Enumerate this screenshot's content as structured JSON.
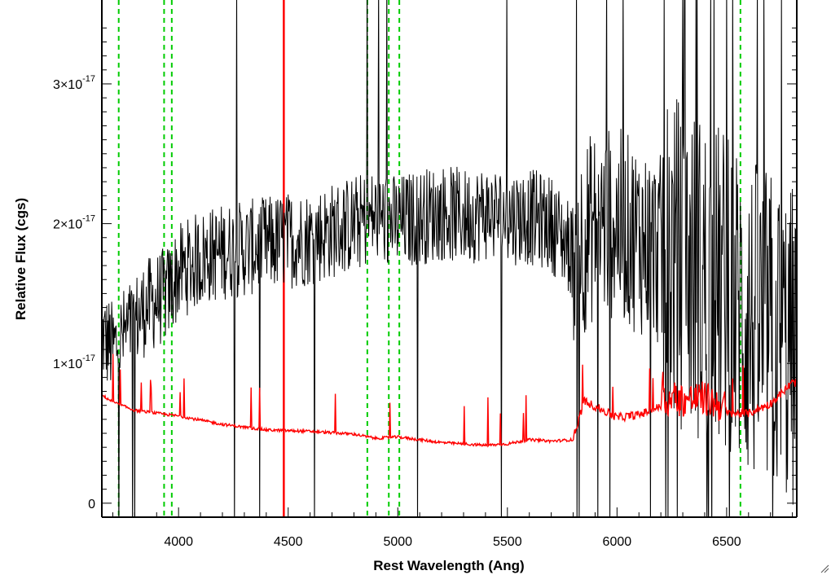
{
  "chart_data": {
    "type": "line",
    "xlabel": "Rest Wavelength (Ang)",
    "ylabel": "Relative Flux (cgs)",
    "xlim": [
      3650,
      6820
    ],
    "ylim": [
      -0.1,
      3.6
    ],
    "y_unit_exponent": -17,
    "x_ticks": [
      4000,
      4500,
      5000,
      5500,
      6000,
      6500
    ],
    "x_tick_labels": [
      "4000",
      "4500",
      "5000",
      "5500",
      "6000",
      "6500"
    ],
    "y_ticks": [
      0,
      1,
      2,
      3
    ],
    "y_tick_labels": [
      {
        "mantissa": "0",
        "exponent": ""
      },
      {
        "mantissa": "1×10",
        "exponent": "-17"
      },
      {
        "mantissa": "2×10",
        "exponent": "-17"
      },
      {
        "mantissa": "3×10",
        "exponent": "-17"
      }
    ],
    "grid": false,
    "series": [
      {
        "color": "#000000",
        "style": "solid",
        "description_points": [
          [
            3650,
            1.2
          ],
          [
            3700,
            1.1
          ],
          [
            3750,
            1.2
          ],
          [
            3800,
            1.3
          ],
          [
            3850,
            1.4
          ],
          [
            3900,
            1.45
          ],
          [
            3950,
            1.5
          ],
          [
            4000,
            1.65
          ],
          [
            4100,
            1.75
          ],
          [
            4200,
            1.8
          ],
          [
            4300,
            1.82
          ],
          [
            4400,
            1.85
          ],
          [
            4500,
            1.88
          ],
          [
            4600,
            1.9
          ],
          [
            4700,
            1.95
          ],
          [
            4800,
            2.0
          ],
          [
            4900,
            2.05
          ],
          [
            5000,
            2.0
          ],
          [
            5100,
            2.05
          ],
          [
            5200,
            2.08
          ],
          [
            5300,
            2.05
          ],
          [
            5400,
            2.08
          ],
          [
            5500,
            2.05
          ],
          [
            5600,
            2.05
          ],
          [
            5700,
            2.0
          ],
          [
            5800,
            1.8
          ],
          [
            5900,
            2.0
          ],
          [
            6000,
            2.0
          ],
          [
            6100,
            1.9
          ],
          [
            6200,
            1.8
          ],
          [
            6300,
            1.7
          ],
          [
            6400,
            1.6
          ],
          [
            6500,
            1.5
          ],
          [
            6600,
            1.3
          ],
          [
            6700,
            1.2
          ],
          [
            6800,
            1.1
          ]
        ]
      },
      {
        "color": "#ff0000",
        "style": "solid",
        "description_points": [
          [
            3650,
            0.77
          ],
          [
            3700,
            0.72
          ],
          [
            3800,
            0.66
          ],
          [
            3900,
            0.64
          ],
          [
            4000,
            0.62
          ],
          [
            4200,
            0.56
          ],
          [
            4400,
            0.52
          ],
          [
            4600,
            0.51
          ],
          [
            4800,
            0.49
          ],
          [
            4900,
            0.46
          ],
          [
            5000,
            0.47
          ],
          [
            5200,
            0.43
          ],
          [
            5400,
            0.41
          ],
          [
            5500,
            0.42
          ],
          [
            5600,
            0.45
          ],
          [
            5700,
            0.44
          ],
          [
            5800,
            0.45
          ],
          [
            5850,
            0.72
          ],
          [
            6000,
            0.6
          ],
          [
            6100,
            0.62
          ],
          [
            6200,
            0.68
          ],
          [
            6400,
            0.7
          ],
          [
            6500,
            0.63
          ],
          [
            6600,
            0.63
          ],
          [
            6700,
            0.7
          ],
          [
            6800,
            0.85
          ]
        ]
      }
    ],
    "vertical_lines": [
      {
        "x": 3727,
        "color": "#00cc00",
        "style": "dashed"
      },
      {
        "x": 3934,
        "color": "#00cc00",
        "style": "dashed"
      },
      {
        "x": 3969,
        "color": "#00cc00",
        "style": "dashed"
      },
      {
        "x": 4861,
        "color": "#00cc00",
        "style": "dashed"
      },
      {
        "x": 4959,
        "color": "#00cc00",
        "style": "dashed"
      },
      {
        "x": 5007,
        "color": "#00cc00",
        "style": "dashed"
      },
      {
        "x": 6563,
        "color": "#00cc00",
        "style": "dashed"
      },
      {
        "x": 4480,
        "color": "#ff0000",
        "style": "solid"
      }
    ]
  }
}
